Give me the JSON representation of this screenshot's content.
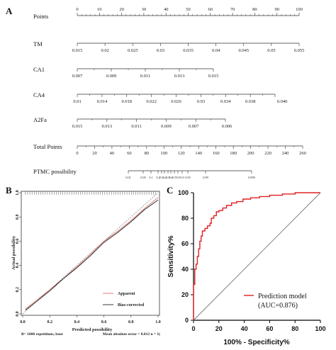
{
  "panel_labels": {
    "a": "A",
    "b": "B",
    "c": "C"
  },
  "chart_data": [
    {
      "type": "nomogram",
      "panel": "A",
      "rows": [
        {
          "label": "Points",
          "ticks": [
            "0",
            "10",
            "20",
            "30",
            "40",
            "50",
            "60",
            "70",
            "80",
            "90",
            "100"
          ],
          "tick_side": "above",
          "minor": 4
        },
        {
          "label": "TM",
          "ticks": [
            "0.015",
            "0.02",
            "0.025",
            "0.03",
            "0.035",
            "0.04",
            "0.045",
            "0.05",
            "0.055"
          ],
          "tick_side": "below",
          "minor": 0
        },
        {
          "label": "CA1",
          "ticks": [
            "0.007",
            "0.009",
            "0.011",
            "0.013",
            "0.015"
          ],
          "tick_side": "below",
          "minor": 1
        },
        {
          "label": "CA4",
          "ticks": [
            "0.01",
            "0.014",
            "0.018",
            "0.022",
            "0.026",
            "0.03",
            "0.034",
            "0.038",
            "0.040"
          ],
          "tick_side": "below",
          "minor": 1
        },
        {
          "label": "A2Fa",
          "ticks": [
            "0.015",
            "0.013",
            "0.011",
            "0.009",
            "0.007",
            "0.006"
          ],
          "tick_side": "below",
          "minor": 1
        },
        {
          "label": "Total Points",
          "ticks": [
            "0",
            "20",
            "40",
            "60",
            "80",
            "100",
            "120",
            "140",
            "160",
            "180",
            "200",
            "220",
            "240",
            "260"
          ],
          "tick_side": "below",
          "minor": 1
        },
        {
          "label": "PTMC possibility",
          "ticks": [
            "0.01",
            "0.05",
            "0.1",
            "0.2",
            "0.3",
            "0.4",
            "0.5",
            "0.6",
            "0.7",
            "0.8",
            "0.9",
            "0.95",
            "0.99",
            "0.999"
          ],
          "tick_side": "below",
          "minor": 0
        }
      ]
    },
    {
      "type": "line",
      "panel": "B",
      "ylabel": "Actual possibility",
      "xlabel": "Predicted possibility",
      "xlim": [
        0.0,
        1.0
      ],
      "ylim": [
        0.0,
        1.0
      ],
      "xticks": [
        "0.0",
        "0.2",
        "0.4",
        "0.6",
        "0.8",
        "1.0"
      ],
      "yticks": [
        "0.0",
        "0.2",
        "0.4",
        "0.6",
        "0.8",
        "1.0"
      ],
      "series": [
        {
          "name": "Apparent",
          "color": "#e06b6b",
          "x": [
            0.02,
            0.1,
            0.2,
            0.3,
            0.4,
            0.5,
            0.6,
            0.7,
            0.8,
            0.9,
            1.0
          ],
          "y": [
            0.04,
            0.11,
            0.2,
            0.29,
            0.39,
            0.49,
            0.6,
            0.68,
            0.77,
            0.87,
            0.96
          ]
        },
        {
          "name": "Bias-corrected",
          "color": "#222222",
          "x": [
            0.02,
            0.1,
            0.2,
            0.3,
            0.4,
            0.5,
            0.6,
            0.7,
            0.8,
            0.9,
            1.0
          ],
          "y": [
            0.03,
            0.1,
            0.19,
            0.29,
            0.38,
            0.48,
            0.59,
            0.67,
            0.76,
            0.86,
            0.94
          ]
        }
      ],
      "legend_position": "bottom-right",
      "footer_left": "B= 1000 repetitions, boot",
      "footer_right": "Mean absolute error = 0.012 n = 1("
    },
    {
      "type": "line",
      "panel": "C",
      "ylabel": "Sensitivity%",
      "xlabel": "100% - Specificity%",
      "xlim": [
        0,
        100
      ],
      "ylim": [
        0,
        100
      ],
      "xticks": [
        "0",
        "20",
        "40",
        "60",
        "80",
        "100"
      ],
      "yticks": [
        "0",
        "20",
        "40",
        "60",
        "80",
        "100"
      ],
      "series": [
        {
          "name": "Prediction model",
          "color": "#e02020",
          "x": [
            0,
            0,
            1,
            1,
            2,
            2,
            3,
            3,
            4,
            4,
            5,
            5,
            6,
            6,
            7,
            7,
            8,
            8,
            9,
            9,
            11,
            11,
            13,
            13,
            14,
            14,
            16,
            16,
            18,
            18,
            20,
            20,
            23,
            23,
            26,
            26,
            30,
            30,
            34,
            34,
            39,
            39,
            45,
            45,
            52,
            52,
            60,
            60,
            70,
            70,
            80,
            80,
            100
          ],
          "y": [
            0,
            28,
            28,
            40,
            40,
            44,
            44,
            50,
            50,
            56,
            56,
            62,
            62,
            66,
            66,
            70,
            70,
            70,
            70,
            72,
            72,
            74,
            74,
            76,
            76,
            80,
            80,
            82,
            82,
            85,
            85,
            86,
            86,
            88,
            88,
            90,
            90,
            92,
            92,
            93,
            93,
            95,
            95,
            96,
            96,
            97,
            97,
            98,
            98,
            99,
            99,
            100,
            100
          ]
        }
      ],
      "reference_line": true,
      "legend_label": "Prediction model",
      "legend_auc": "(AUC=0.876)"
    }
  ]
}
